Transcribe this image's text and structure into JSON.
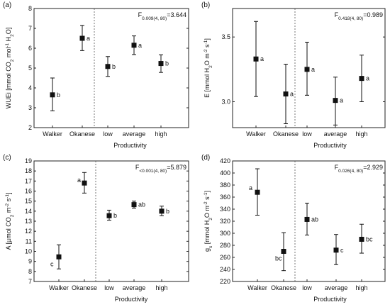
{
  "chart_data": [
    {
      "type": "scatter",
      "panel_label": "(a)",
      "ylabel": "WUEi [mmol CO2 mol-1 H2O]",
      "ylabel_parts": [
        {
          "t": "WUEi [mmol CO",
          "s": "n"
        },
        {
          "t": "2",
          "s": "sub"
        },
        {
          "t": " mol",
          "s": "n"
        },
        {
          "t": "-1",
          "s": "sup"
        },
        {
          "t": " H",
          "s": "n"
        },
        {
          "t": "2",
          "s": "sub"
        },
        {
          "t": "O]",
          "s": "n"
        }
      ],
      "xlabel": "Productivity",
      "categories": [
        "Walker",
        "Okanese",
        "low",
        "average",
        "high"
      ],
      "values": [
        3.65,
        6.5,
        5.08,
        6.15,
        5.23
      ],
      "errors_low": [
        2.85,
        5.88,
        4.58,
        5.68,
        4.78
      ],
      "errors_high": [
        4.5,
        7.15,
        5.58,
        6.62,
        5.67
      ],
      "letters": [
        "b",
        "a",
        "b",
        "a",
        "b"
      ],
      "ylim": [
        2,
        8
      ],
      "yticks": [
        "2",
        "3",
        "4",
        "5",
        "6",
        "7",
        "8"
      ],
      "stat": {
        "main": "F",
        "sub": "0.009(4, 80)",
        "value": "=3.644"
      }
    },
    {
      "type": "scatter",
      "panel_label": "(b)",
      "ylabel": "E [mmol H2O m-2 s-1]",
      "ylabel_parts": [
        {
          "t": "E [mmol H",
          "s": "n"
        },
        {
          "t": "2",
          "s": "sub"
        },
        {
          "t": "O m",
          "s": "n"
        },
        {
          "t": "-2",
          "s": "sup"
        },
        {
          "t": " s",
          "s": "n"
        },
        {
          "t": "-1",
          "s": "sup"
        },
        {
          "t": "]",
          "s": "n"
        }
      ],
      "xlabel": "Productivity",
      "categories": [
        "Walker",
        "Okanese",
        "low",
        "average",
        "high"
      ],
      "values": [
        3.33,
        3.06,
        3.25,
        3.01,
        3.18
      ],
      "errors_low": [
        3.04,
        2.83,
        3.05,
        2.82,
        3.0
      ],
      "errors_high": [
        3.62,
        3.29,
        3.46,
        3.19,
        3.36
      ],
      "letters": [
        "a",
        "a",
        "a",
        "a",
        "a"
      ],
      "ylim": [
        2.8,
        3.72
      ],
      "yticks": [
        "3.0",
        "3.5"
      ],
      "yticks_values": [
        3.0,
        3.5
      ],
      "stat": {
        "main": "F",
        "sub": "0.418(4, 80)",
        "value": "=0.989"
      }
    },
    {
      "type": "scatter",
      "panel_label": "(c)",
      "ylabel": "A [µmol CO2 m-2 s-1]",
      "ylabel_parts": [
        {
          "t": "A [µmol CO",
          "s": "n"
        },
        {
          "t": "2",
          "s": "sub"
        },
        {
          "t": " m",
          "s": "n"
        },
        {
          "t": "-2",
          "s": "sup"
        },
        {
          "t": " s",
          "s": "n"
        },
        {
          "t": "-1",
          "s": "sup"
        },
        {
          "t": "]",
          "s": "n"
        }
      ],
      "xlabel": "Productivity",
      "categories": [
        "Walker",
        "Okanese",
        "low",
        "average",
        "high"
      ],
      "values": [
        9.45,
        16.8,
        13.55,
        14.65,
        14.0
      ],
      "errors_low": [
        8.25,
        15.8,
        13.1,
        14.3,
        13.55
      ],
      "errors_high": [
        10.65,
        17.85,
        14.1,
        15.0,
        14.5
      ],
      "letters": [
        "c",
        "a",
        "b",
        "ab",
        "b"
      ],
      "ylim": [
        7,
        19
      ],
      "yticks": [
        "7",
        "8",
        "9",
        "10",
        "11",
        "12",
        "13",
        "14",
        "15",
        "16",
        "17",
        "18",
        "19"
      ],
      "stat": {
        "main": "F",
        "sub": "<0.001(4, 80)",
        "value": "=5.879"
      }
    },
    {
      "type": "scatter",
      "panel_label": "(d)",
      "ylabel": "gs [mmol H2O m-2 s-1]",
      "ylabel_parts": [
        {
          "t": "g",
          "s": "n"
        },
        {
          "t": "s",
          "s": "sub"
        },
        {
          "t": " [mmol H",
          "s": "n"
        },
        {
          "t": "2",
          "s": "sub"
        },
        {
          "t": "O m",
          "s": "n"
        },
        {
          "t": "-2",
          "s": "sup"
        },
        {
          "t": " s",
          "s": "n"
        },
        {
          "t": "-1",
          "s": "sup"
        },
        {
          "t": "]",
          "s": "n"
        }
      ],
      "xlabel": "Productivity",
      "categories": [
        "Walker",
        "Okanese",
        "low",
        "average",
        "high"
      ],
      "values": [
        368,
        270,
        323,
        272,
        290
      ],
      "errors_low": [
        330,
        238,
        297,
        248,
        267
      ],
      "errors_high": [
        407,
        301,
        350,
        298,
        315
      ],
      "letters": [
        "a",
        "bc",
        "ab",
        "c",
        "bc"
      ],
      "ylim": [
        220,
        420
      ],
      "yticks": [
        "220",
        "240",
        "260",
        "280",
        "300",
        "320",
        "340",
        "360",
        "380",
        "400",
        "420"
      ],
      "stat": {
        "main": "F",
        "sub": "0.026(4, 80)",
        "value": "=2.929"
      }
    }
  ]
}
